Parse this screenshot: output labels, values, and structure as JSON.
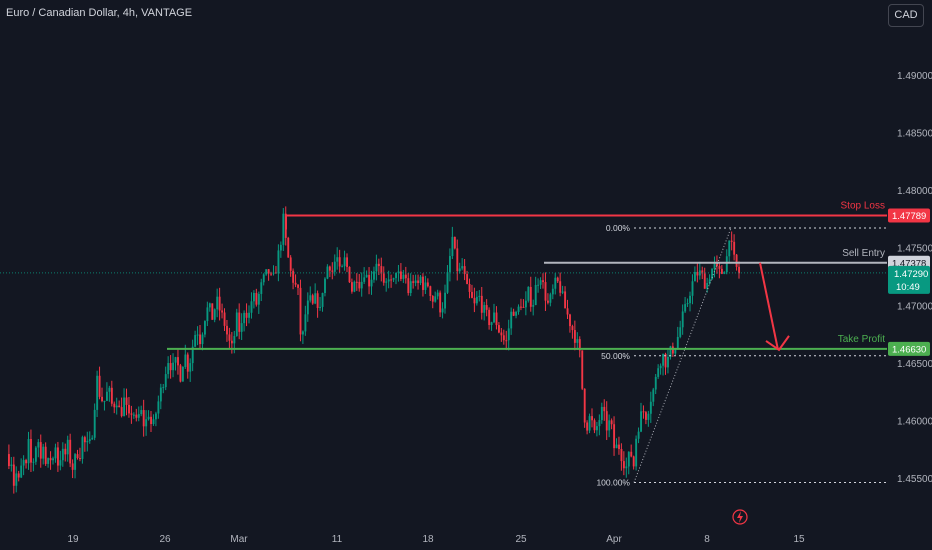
{
  "header": {
    "symbol_title": "Euro / Canadian Dollar, 4h, VANTAGE",
    "currency_button": "CAD"
  },
  "chart_data": {
    "type": "candlestick",
    "y_axis": {
      "ylim": [
        1.4522,
        1.4985
      ],
      "ticks": [
        "1.49000",
        "1.48500",
        "1.48000",
        "1.47500",
        "1.47000",
        "1.46500",
        "1.46000",
        "1.45500"
      ],
      "tick_values": [
        1.49,
        1.485,
        1.48,
        1.475,
        1.47,
        1.465,
        1.46,
        1.455
      ]
    },
    "x_axis": {
      "ticks": [
        "19",
        "26",
        "Mar",
        "11",
        "18",
        "25",
        "Apr",
        "8",
        "15"
      ]
    },
    "ohlc_path": [
      [
        0,
        1.456
      ],
      [
        3,
        1.4545
      ],
      [
        6,
        1.4595
      ],
      [
        9,
        1.456
      ],
      [
        12,
        1.4575
      ],
      [
        15,
        1.4545
      ],
      [
        18,
        1.4555
      ],
      [
        21,
        1.4545
      ],
      [
        24,
        1.457
      ],
      [
        27,
        1.4555
      ],
      [
        30,
        1.458
      ],
      [
        33,
        1.456
      ],
      [
        36,
        1.457
      ],
      [
        39,
        1.459
      ],
      [
        42,
        1.4565
      ],
      [
        45,
        1.4585
      ],
      [
        48,
        1.4555
      ],
      [
        51,
        1.457
      ],
      [
        54,
        1.4565
      ],
      [
        57,
        1.458
      ],
      [
        60,
        1.456
      ],
      [
        63,
        1.4575
      ],
      [
        66,
        1.4568
      ],
      [
        69,
        1.458
      ],
      [
        72,
        1.4565
      ],
      [
        75,
        1.4558
      ],
      [
        78,
        1.4575
      ],
      [
        81,
        1.457
      ],
      [
        84,
        1.4585
      ],
      [
        88,
        1.4578
      ],
      [
        92,
        1.458
      ],
      [
        95,
        1.46
      ],
      [
        98,
        1.464
      ],
      [
        102,
        1.462
      ],
      [
        106,
        1.4618
      ],
      [
        110,
        1.4628
      ],
      [
        114,
        1.4612
      ],
      [
        118,
        1.462
      ],
      [
        122,
        1.4605
      ],
      [
        126,
        1.462
      ],
      [
        130,
        1.46
      ],
      [
        134,
        1.4612
      ],
      [
        138,
        1.4598
      ],
      [
        142,
        1.461
      ],
      [
        146,
        1.4595
      ],
      [
        150,
        1.4608
      ],
      [
        154,
        1.4592
      ],
      [
        158,
        1.461
      ],
      [
        162,
        1.4625
      ],
      [
        166,
        1.464
      ],
      [
        170,
        1.4655
      ],
      [
        174,
        1.4645
      ],
      [
        178,
        1.4652
      ],
      [
        182,
        1.464
      ],
      [
        186,
        1.466
      ],
      [
        190,
        1.4645
      ],
      [
        194,
        1.4665
      ],
      [
        198,
        1.4682
      ],
      [
        202,
        1.467
      ],
      [
        206,
        1.469
      ],
      [
        210,
        1.47
      ],
      [
        214,
        1.469
      ],
      [
        218,
        1.4705
      ],
      [
        222,
        1.4695
      ],
      [
        226,
        1.4685
      ],
      [
        230,
        1.467
      ],
      [
        234,
        1.4662
      ],
      [
        238,
        1.469
      ],
      [
        242,
        1.4675
      ],
      [
        246,
        1.47
      ],
      [
        250,
        1.469
      ],
      [
        254,
        1.471
      ],
      [
        258,
        1.4702
      ],
      [
        262,
        1.4715
      ],
      [
        266,
        1.4725
      ],
      [
        270,
        1.473
      ],
      [
        274,
        1.472
      ],
      [
        278,
        1.4735
      ],
      [
        282,
        1.4755
      ],
      [
        285,
        1.4776
      ],
      [
        288,
        1.475
      ],
      [
        292,
        1.473
      ],
      [
        296,
        1.472
      ],
      [
        300,
        1.471
      ],
      [
        303,
        1.466
      ],
      [
        306,
        1.469
      ],
      [
        309,
        1.47
      ],
      [
        312,
        1.4705
      ],
      [
        315,
        1.4698
      ],
      [
        318,
        1.4712
      ],
      [
        321,
        1.469
      ],
      [
        324,
        1.4715
      ],
      [
        327,
        1.4725
      ],
      [
        330,
        1.474
      ],
      [
        334,
        1.473
      ],
      [
        338,
        1.4745
      ],
      [
        342,
        1.4725
      ],
      [
        346,
        1.474
      ],
      [
        350,
        1.473
      ],
      [
        354,
        1.4712
      ],
      [
        358,
        1.4728
      ],
      [
        362,
        1.4718
      ],
      [
        366,
        1.4732
      ],
      [
        370,
        1.472
      ],
      [
        374,
        1.4728
      ],
      [
        378,
        1.474
      ],
      [
        382,
        1.4728
      ],
      [
        386,
        1.4712
      ],
      [
        390,
        1.4728
      ],
      [
        394,
        1.4715
      ],
      [
        398,
        1.4735
      ],
      [
        402,
        1.4718
      ],
      [
        406,
        1.473
      ],
      [
        410,
        1.4712
      ],
      [
        414,
        1.4725
      ],
      [
        418,
        1.4715
      ],
      [
        422,
        1.4725
      ],
      [
        426,
        1.4715
      ],
      [
        430,
        1.472
      ],
      [
        434,
        1.4705
      ],
      [
        438,
        1.4712
      ],
      [
        442,
        1.4698
      ],
      [
        446,
        1.4705
      ],
      [
        450,
        1.4732
      ],
      [
        454,
        1.476
      ],
      [
        457,
        1.474
      ],
      [
        460,
        1.4728
      ],
      [
        464,
        1.4735
      ],
      [
        468,
        1.4715
      ],
      [
        472,
        1.4708
      ],
      [
        476,
        1.47
      ],
      [
        480,
        1.471
      ],
      [
        484,
        1.4698
      ],
      [
        488,
        1.4692
      ],
      [
        492,
        1.4685
      ],
      [
        496,
        1.4692
      ],
      [
        500,
        1.468
      ],
      [
        504,
        1.4675
      ],
      [
        507,
        1.4665
      ],
      [
        510,
        1.468
      ],
      [
        514,
        1.47
      ],
      [
        518,
        1.469
      ],
      [
        522,
        1.4705
      ],
      [
        526,
        1.4695
      ],
      [
        530,
        1.4712
      ],
      [
        534,
        1.47
      ],
      [
        538,
        1.472
      ],
      [
        542,
        1.4728
      ],
      [
        546,
        1.4712
      ],
      [
        550,
        1.47
      ],
      [
        554,
        1.4712
      ],
      [
        558,
        1.4722
      ],
      [
        562,
        1.4715
      ],
      [
        566,
        1.47
      ],
      [
        570,
        1.469
      ],
      [
        574,
        1.468
      ],
      [
        578,
        1.467
      ],
      [
        582,
        1.4655
      ],
      [
        585,
        1.461
      ],
      [
        588,
        1.4595
      ],
      [
        592,
        1.4605
      ],
      [
        596,
        1.4588
      ],
      [
        600,
        1.46
      ],
      [
        604,
        1.461
      ],
      [
        608,
        1.4595
      ],
      [
        612,
        1.46
      ],
      [
        616,
        1.4575
      ],
      [
        620,
        1.458
      ],
      [
        624,
        1.4568
      ],
      [
        628,
        1.456
      ],
      [
        632,
        1.4575
      ],
      [
        635,
        1.456
      ],
      [
        638,
        1.459
      ],
      [
        641,
        1.46
      ],
      [
        644,
        1.461
      ],
      [
        648,
        1.4605
      ],
      [
        652,
        1.462
      ],
      [
        656,
        1.463
      ],
      [
        660,
        1.465
      ],
      [
        664,
        1.4658
      ],
      [
        668,
        1.465
      ],
      [
        672,
        1.466
      ],
      [
        676,
        1.4665
      ],
      [
        680,
        1.4675
      ],
      [
        684,
        1.469
      ],
      [
        688,
        1.47
      ],
      [
        692,
        1.4715
      ],
      [
        696,
        1.4725
      ],
      [
        700,
        1.473
      ],
      [
        704,
        1.4725
      ],
      [
        708,
        1.4718
      ],
      [
        712,
        1.473
      ],
      [
        716,
        1.4735
      ],
      [
        720,
        1.4728
      ],
      [
        724,
        1.473
      ],
      [
        728,
        1.474
      ],
      [
        731,
        1.4765
      ],
      [
        734,
        1.4745
      ],
      [
        737,
        1.4735
      ],
      [
        740,
        1.4729
      ]
    ],
    "current_price": {
      "value": 1.4729,
      "label": "1.47290",
      "countdown": "10:49"
    },
    "levels": [
      {
        "name": "Stop Loss",
        "price": 1.47789,
        "price_label": "1.47789",
        "color": "#f23645"
      },
      {
        "name": "Sell Entry",
        "price": 1.47378,
        "price_label": "1.47378",
        "color": "#b2b5be"
      },
      {
        "name": "Take Profit",
        "price": 1.4663,
        "price_label": "1.46630",
        "color": "#4caf50"
      }
    ],
    "fibonacci": [
      {
        "label": "0.00%",
        "price": 1.4768
      },
      {
        "label": "50.00%",
        "price": 1.4657
      },
      {
        "label": "100.00%",
        "price": 1.4547
      }
    ],
    "annotations": {
      "arrow": "sell projection arrow toward Take Profit",
      "colors": {
        "up": "#089981",
        "down": "#f23645",
        "stop": "#f23645",
        "entry": "#b2b5be",
        "tp": "#4caf50",
        "bg": "#131722"
      }
    }
  }
}
